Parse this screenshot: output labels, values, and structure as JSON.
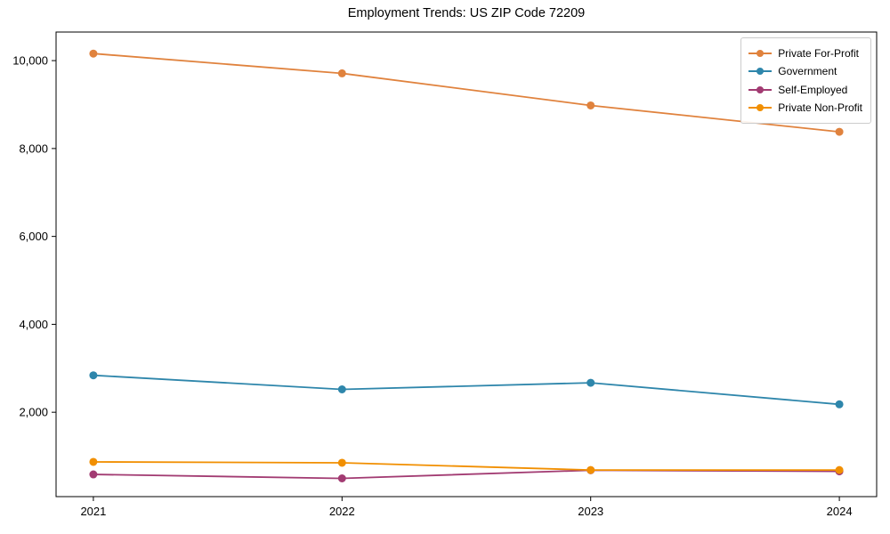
{
  "chart_data": {
    "type": "line",
    "title": "Employment Trends: US ZIP Code 72209",
    "x": [
      2021,
      2022,
      2023,
      2024
    ],
    "xtick_labels": [
      "2021",
      "2022",
      "2023",
      "2024"
    ],
    "yticks": [
      2000,
      4000,
      6000,
      8000,
      10000
    ],
    "ytick_labels": [
      "2,000",
      "4,000",
      "6,000",
      "8,000",
      "10,000"
    ],
    "xlim": [
      2020.85,
      2024.15
    ],
    "ylim": [
      80,
      10650
    ],
    "grid": false,
    "marker": "o",
    "legend_position": "upper right",
    "axis_color": "#000000",
    "series": [
      {
        "name": "Private For-Profit",
        "color": "#E0823D",
        "values": [
          10160,
          9710,
          8980,
          8380
        ]
      },
      {
        "name": "Government",
        "color": "#2E86AB",
        "values": [
          2840,
          2520,
          2670,
          2180
        ]
      },
      {
        "name": "Self-Employed",
        "color": "#A23B72",
        "values": [
          585,
          495,
          680,
          655
        ]
      },
      {
        "name": "Private Non-Profit",
        "color": "#F18F01",
        "values": [
          870,
          850,
          685,
          685
        ]
      }
    ]
  }
}
